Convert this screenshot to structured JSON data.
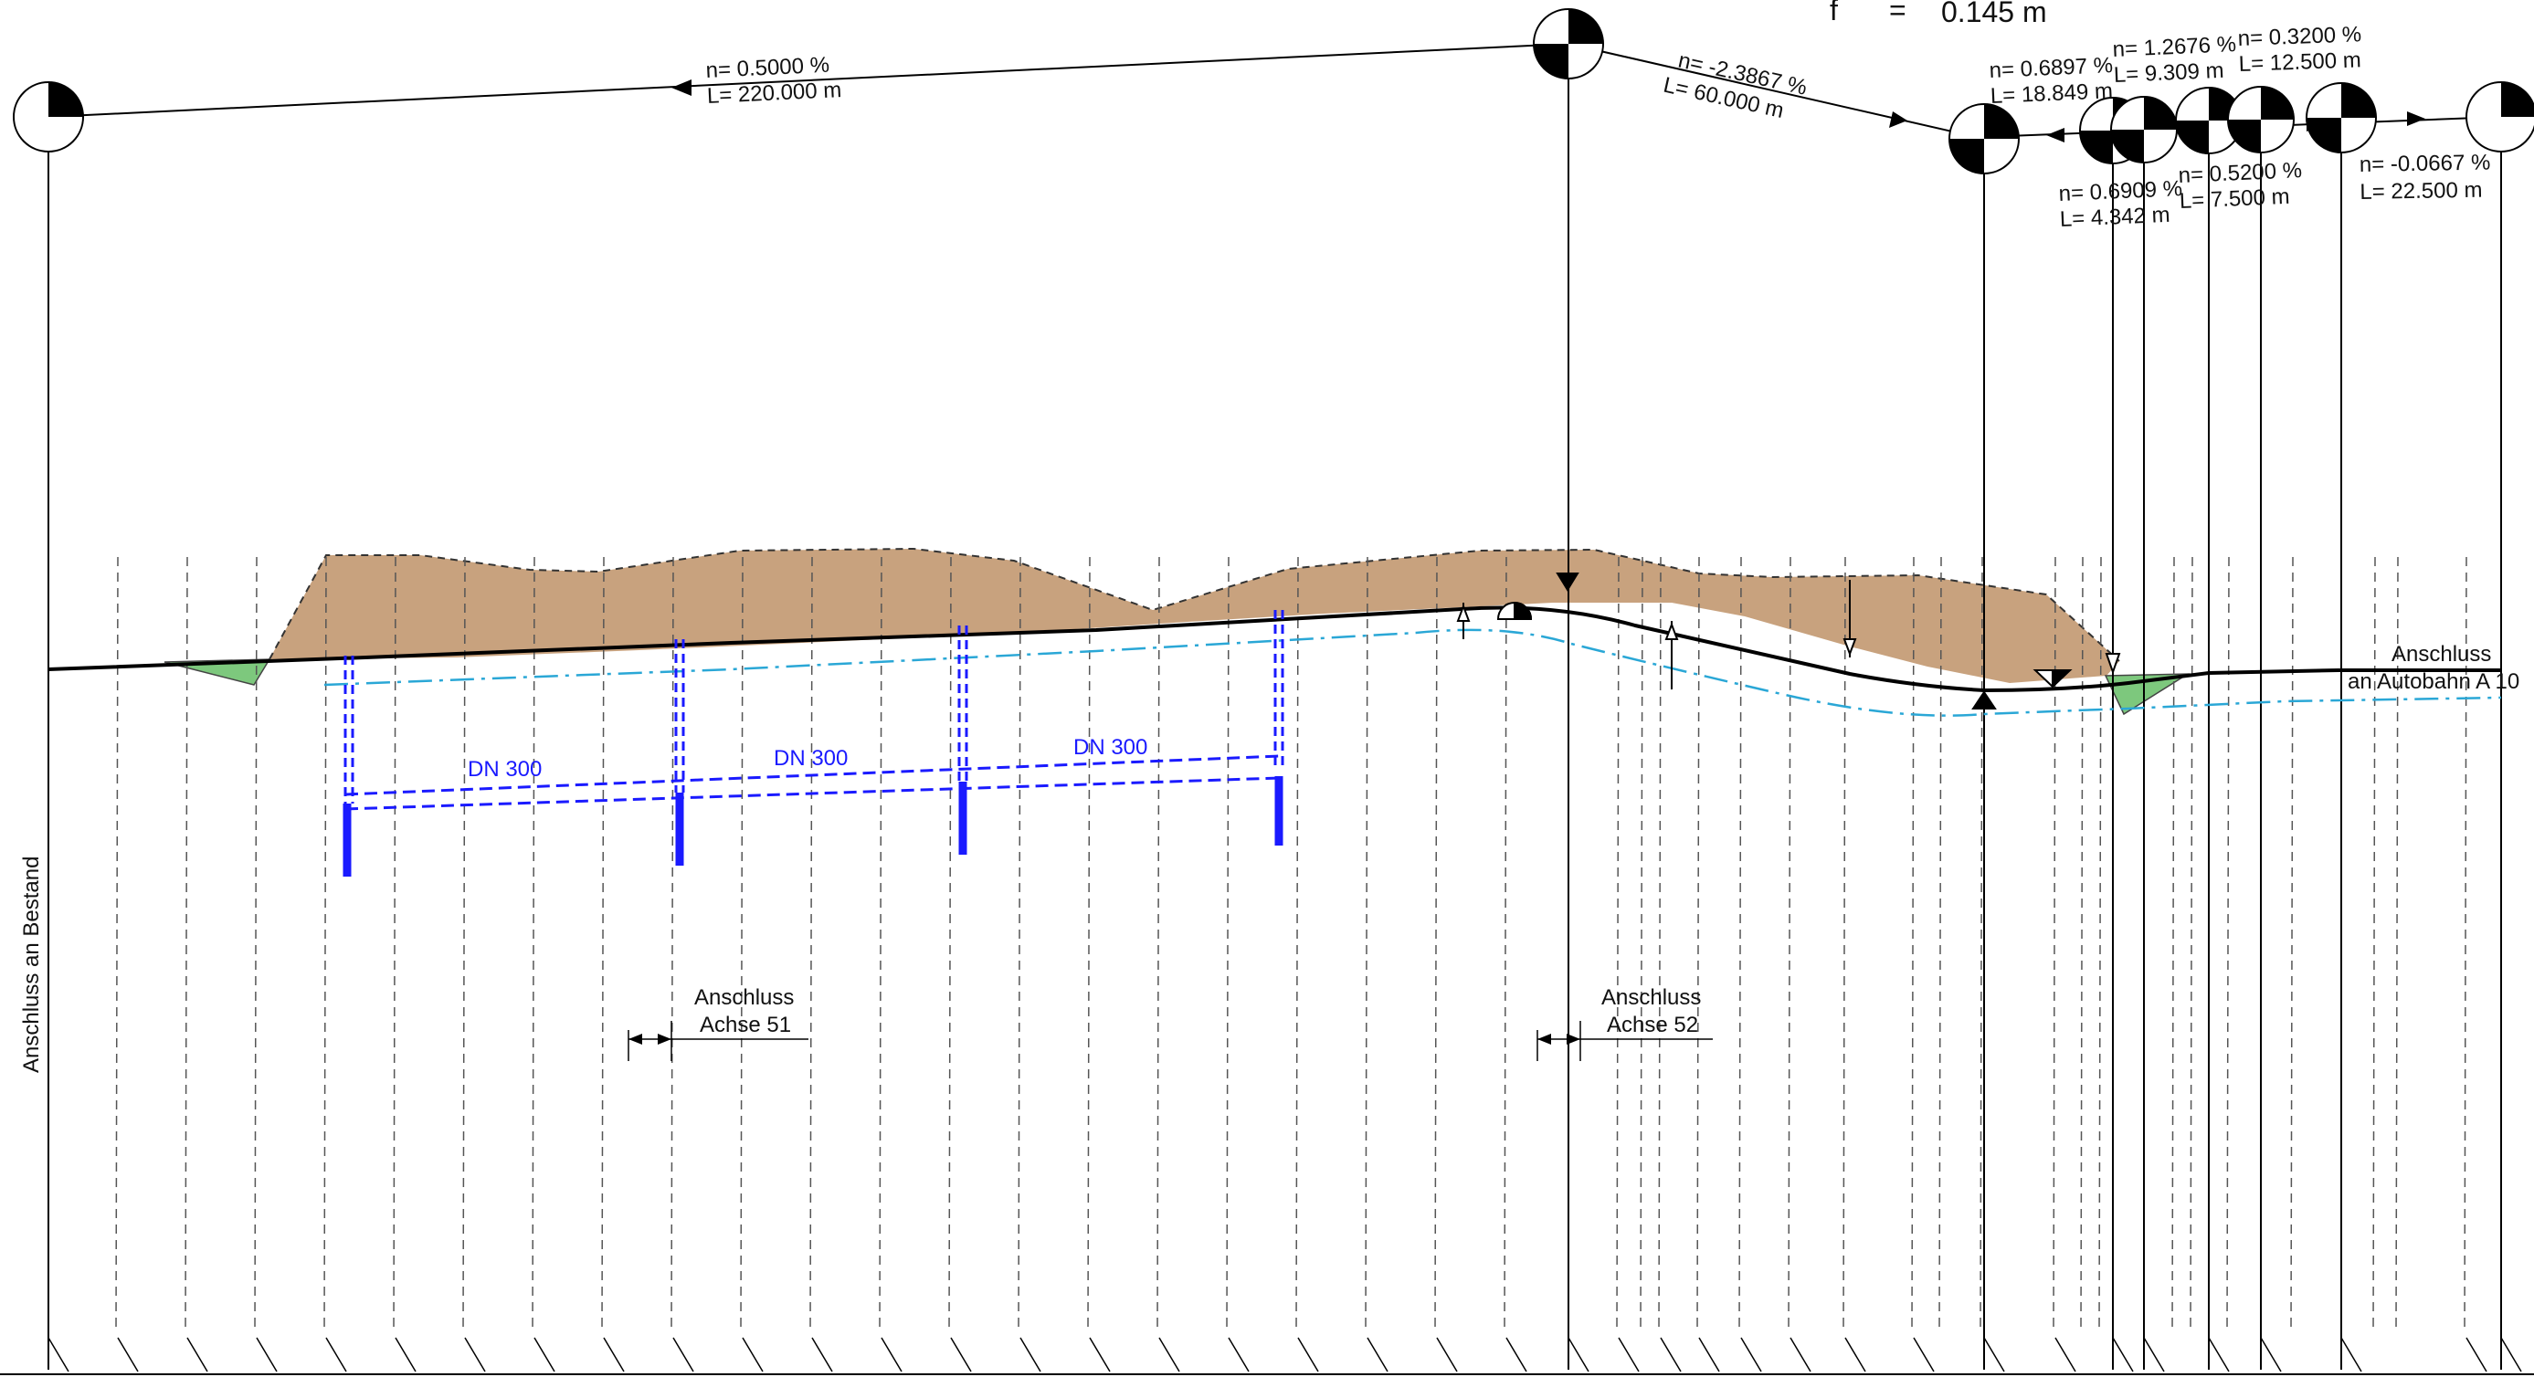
{
  "header": {
    "f_symbol": "f",
    "f_equals": "=",
    "f_value": "0.145 m"
  },
  "grade_segments": [
    {
      "n": "n=  0.5000 %",
      "L": "L= 220.000 m"
    },
    {
      "n": "n= -2.3867 %",
      "L": "L=  60.000 m"
    },
    {
      "n": "n= 0.6897 %",
      "L": "L= 18.849 m"
    },
    {
      "n": "n= 0.6909 %",
      "L": "L=  4.342 m"
    },
    {
      "n": "n= 1.2676 %",
      "L": "L=  9.309 m"
    },
    {
      "n": "n= 0.5200 %",
      "L": "L=  7.500 m"
    },
    {
      "n": "n= 0.3200 %",
      "L": "L= 12.500 m"
    },
    {
      "n": "n= -0.0667 %",
      "L": "L=  22.500 m"
    }
  ],
  "pipes": [
    {
      "label": "DN 300"
    },
    {
      "label": "DN 300"
    },
    {
      "label": "DN 300"
    }
  ],
  "connections": {
    "achse51": {
      "line1": "Anschluss",
      "line2": "Achse 51"
    },
    "achse52": {
      "line1": "Anschluss",
      "line2": "Achse 52"
    },
    "autobahn": {
      "line1": "Anschluss",
      "line2": "an Autobahn A 10"
    },
    "bestand": "Anschluss an Bestand"
  },
  "colors": {
    "fill_soil": "#c8a27e",
    "fill_green": "#7dc87d",
    "water_line": "#2aa7d6",
    "pipe": "#1a1aff",
    "profile_line": "#000000"
  }
}
